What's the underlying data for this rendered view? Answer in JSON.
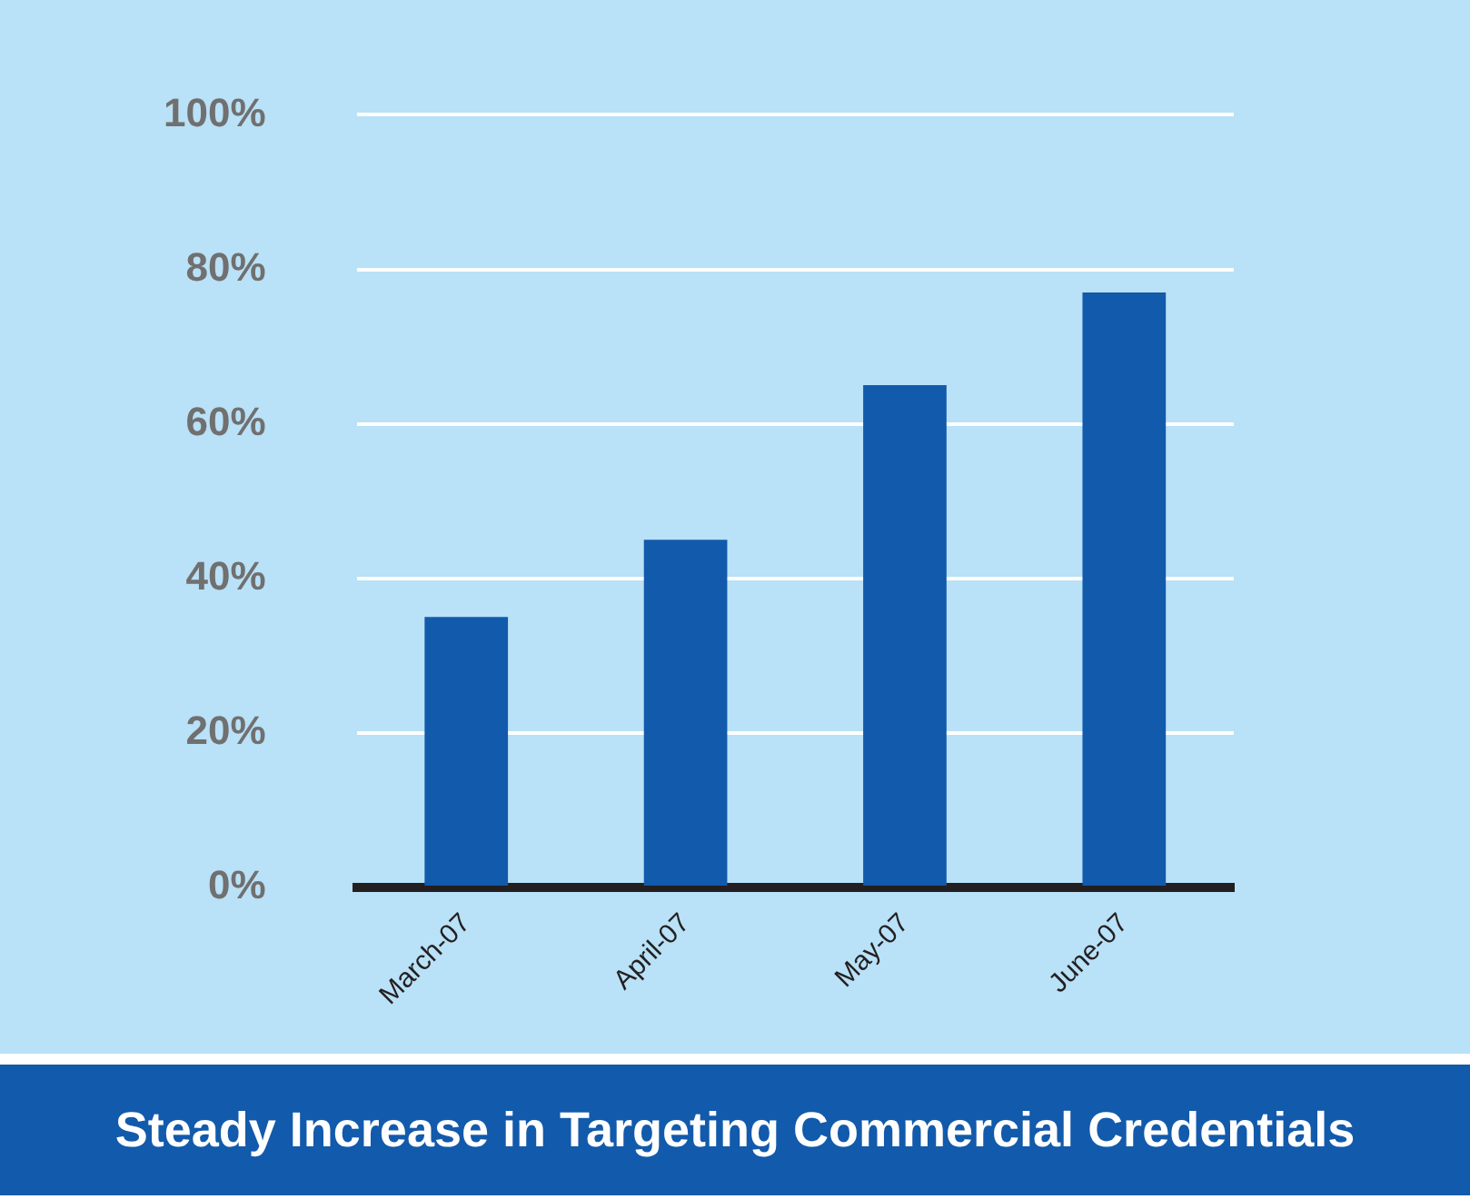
{
  "chart_data": {
    "type": "bar",
    "title": "Steady Increase in Targeting Commercial Credentials",
    "categories": [
      "March-07",
      "April-07",
      "May-07",
      "June-07"
    ],
    "values": [
      35,
      45,
      65,
      77
    ],
    "color": "#125aab",
    "ylim": [
      0,
      100
    ],
    "yticks": [
      {
        "value": 0,
        "label": "0%"
      },
      {
        "value": 20,
        "label": "20%"
      },
      {
        "value": 40,
        "label": "40%"
      },
      {
        "value": 60,
        "label": "60%"
      },
      {
        "value": 80,
        "label": "80%"
      },
      {
        "value": 100,
        "label": "100%"
      }
    ],
    "grid": "y",
    "legend": false
  }
}
